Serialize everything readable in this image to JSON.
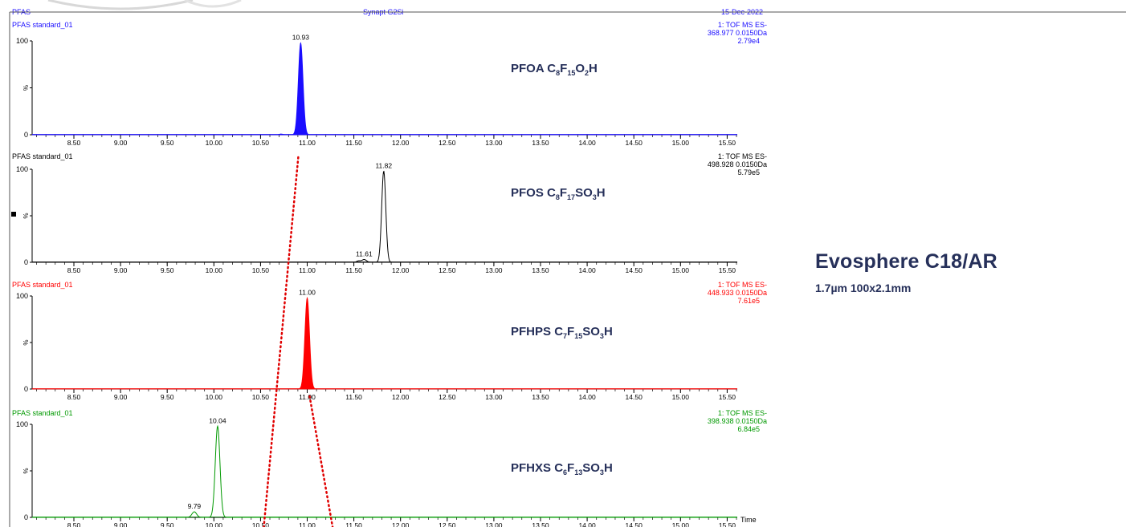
{
  "header": {
    "left": "PFAS",
    "center": "Synapt G2Si",
    "date": "15-Dec-2022"
  },
  "column": {
    "title": "Evosphere C18/AR",
    "subtitle": "1.7µm  100x2.1mm"
  },
  "colors": {
    "pfoa": "#1a0dff",
    "pfos": "#000000",
    "pfhps": "#ff0000",
    "pfhxs": "#009900",
    "header_blue": "#1a0dff",
    "label_navy": "#26305a",
    "arrow_red": "#e00000"
  },
  "chart_data": [
    {
      "type": "line",
      "sample": "PFAS standard_01",
      "compound_name": "PFOA",
      "formula": [
        [
          "C",
          ""
        ],
        [
          "8",
          "sub"
        ],
        [
          "F",
          ""
        ],
        [
          "15",
          "sub"
        ],
        [
          "O",
          ""
        ],
        [
          "2",
          "sub"
        ],
        [
          "H",
          ""
        ]
      ],
      "scan": "1: TOF MS ES-",
      "mass": "368.977 0.0150Da",
      "intensity": "2.79e4",
      "xlim": [
        8.1,
        15.65
      ],
      "ylim": [
        0,
        100
      ],
      "xticks": [
        "8.50",
        "9.00",
        "9.50",
        "10.00",
        "10.50",
        "11.00",
        "11.50",
        "12.00",
        "12.50",
        "13.00",
        "13.50",
        "14.00",
        "14.50",
        "15.00",
        "15.50"
      ],
      "yticks": [
        "100",
        "%",
        "0"
      ],
      "filled": true,
      "peaks": [
        {
          "rt": 10.93,
          "height": 98,
          "width": 0.025,
          "label": "10.93"
        },
        {
          "rt": 10.72,
          "height": 0.8,
          "width": 0.02,
          "label": ""
        }
      ]
    },
    {
      "type": "line",
      "sample": "PFAS standard_01",
      "compound_name": "PFOS",
      "formula": [
        [
          "C",
          ""
        ],
        [
          "8",
          "sub"
        ],
        [
          "F",
          ""
        ],
        [
          "17",
          "sub"
        ],
        [
          "SO",
          ""
        ],
        [
          "3",
          "sub"
        ],
        [
          "H",
          ""
        ]
      ],
      "scan": "1: TOF MS ES-",
      "mass": "498.928 0.0150Da",
      "intensity": "5.79e5",
      "xlim": [
        8.1,
        15.65
      ],
      "ylim": [
        0,
        100
      ],
      "xticks": [
        "8.50",
        "9.00",
        "9.50",
        "10.00",
        "10.50",
        "11.00",
        "11.50",
        "12.00",
        "12.50",
        "13.00",
        "13.50",
        "14.00",
        "14.50",
        "15.00",
        "15.50"
      ],
      "yticks": [
        "100",
        "%",
        "0"
      ],
      "filled": false,
      "peaks": [
        {
          "rt": 11.82,
          "height": 98,
          "width": 0.022,
          "label": "11.82"
        },
        {
          "rt": 11.61,
          "height": 3,
          "width": 0.025,
          "label": "11.61"
        },
        {
          "rt": 11.55,
          "height": 1.5,
          "width": 0.02,
          "label": ""
        }
      ]
    },
    {
      "type": "line",
      "sample": "PFAS standard_01",
      "compound_name": "PFHPS",
      "formula": [
        [
          "C",
          ""
        ],
        [
          "7",
          "sub"
        ],
        [
          "F",
          ""
        ],
        [
          "15",
          "sub"
        ],
        [
          "SO",
          ""
        ],
        [
          "3",
          "sub"
        ],
        [
          "H",
          ""
        ]
      ],
      "scan": "1: TOF MS ES-",
      "mass": "448.933 0.0150Da",
      "intensity": "7.61e5",
      "xlim": [
        8.1,
        15.65
      ],
      "ylim": [
        0,
        100
      ],
      "xticks": [
        "8.50",
        "9.00",
        "9.50",
        "10.00",
        "10.50",
        "11.00",
        "11.50",
        "12.00",
        "12.50",
        "13.00",
        "13.50",
        "14.00",
        "14.50",
        "15.00",
        "15.50"
      ],
      "yticks": [
        "100",
        "%",
        "0"
      ],
      "filled": true,
      "peaks": [
        {
          "rt": 11.0,
          "height": 98,
          "width": 0.025,
          "label": "11.00"
        }
      ]
    },
    {
      "type": "line",
      "sample": "PFAS standard_01",
      "compound_name": "PFHXS",
      "formula": [
        [
          "C",
          ""
        ],
        [
          "6",
          "sub"
        ],
        [
          "F",
          ""
        ],
        [
          "13",
          "sub"
        ],
        [
          "SO",
          ""
        ],
        [
          "3",
          "sub"
        ],
        [
          "H",
          ""
        ]
      ],
      "scan": "1: TOF MS ES-",
      "mass": "398.938 0.0150Da",
      "intensity": "6.84e5",
      "xlim": [
        8.1,
        15.65
      ],
      "ylim": [
        0,
        100
      ],
      "xticks": [
        "8.50",
        "9.00",
        "9.50",
        "10.00",
        "10.50",
        "11.00",
        "11.50",
        "12.00",
        "12.50",
        "13.00",
        "13.50",
        "14.00",
        "14.50",
        "15.00",
        "15.50"
      ],
      "yticks": [
        "100",
        "%",
        "0"
      ],
      "xlabel": "Time",
      "filled": false,
      "peaks": [
        {
          "rt": 10.04,
          "height": 98,
          "width": 0.025,
          "label": "10.04"
        },
        {
          "rt": 9.79,
          "height": 6,
          "width": 0.025,
          "label": "9.79"
        }
      ]
    }
  ],
  "annotation": {
    "retention_window": [
      10.93,
      11.0,
      10.75,
      11.1
    ]
  }
}
